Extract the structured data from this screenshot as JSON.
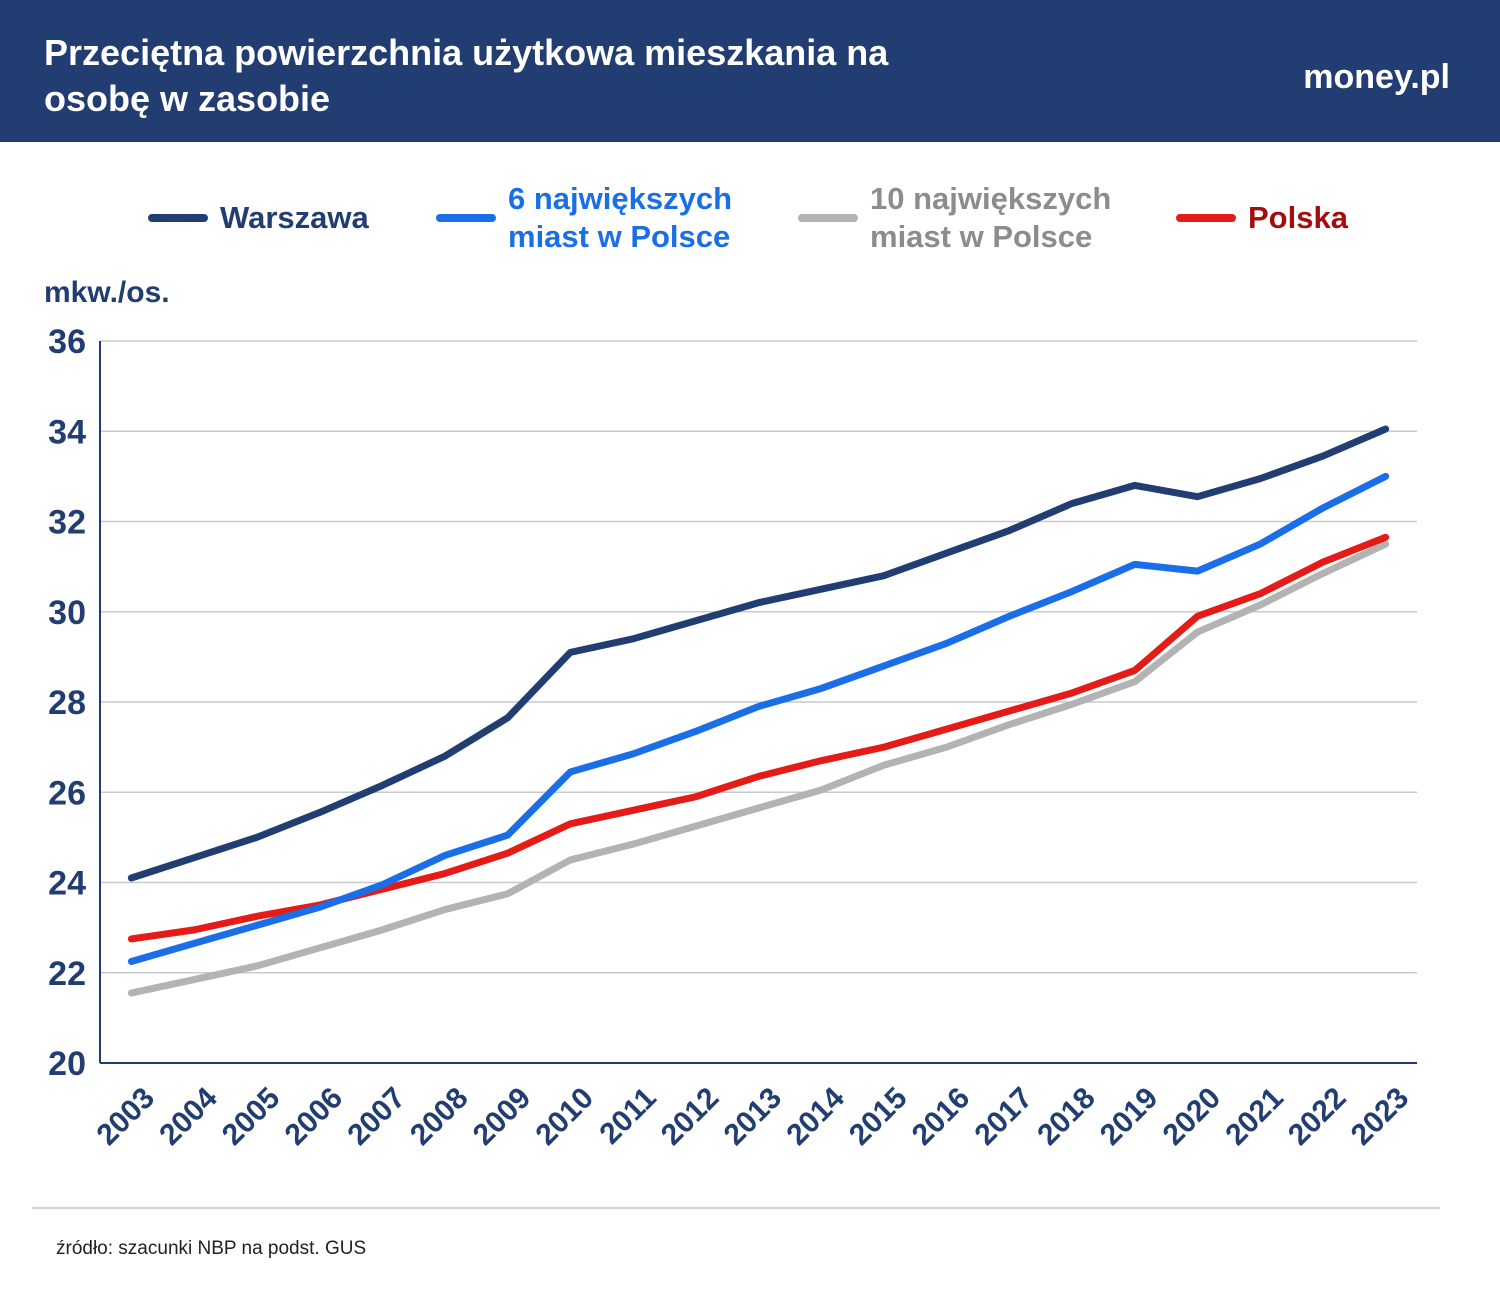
{
  "header": {
    "title": "Przeciętna powierzchnia użytkowa mieszkania na osobę w zasobie",
    "logo": "money.pl"
  },
  "chart_data": {
    "type": "line",
    "y_label": "mkw./os.",
    "categories": [
      "2003",
      "2004",
      "2005",
      "2006",
      "2007",
      "2008",
      "2009",
      "2010",
      "2011",
      "2012",
      "2013",
      "2014",
      "2015",
      "2016",
      "2017",
      "2018",
      "2019",
      "2020",
      "2021",
      "2022",
      "2023"
    ],
    "series": [
      {
        "name": "Warszawa",
        "color": "#223d72",
        "text_color": "#223d72",
        "values": [
          24.1,
          24.55,
          25.0,
          25.55,
          26.15,
          26.8,
          27.65,
          29.1,
          29.4,
          29.8,
          30.2,
          30.5,
          30.8,
          31.3,
          31.8,
          32.4,
          32.8,
          32.55,
          32.95,
          33.45,
          34.05
        ]
      },
      {
        "name": "6 największych miast w Polsce",
        "color": "#1a6fe8",
        "text_color": "#1a6fe8",
        "values": [
          22.25,
          22.65,
          23.05,
          23.45,
          23.95,
          24.6,
          25.05,
          26.45,
          26.85,
          27.35,
          27.9,
          28.3,
          28.8,
          29.3,
          29.9,
          30.45,
          31.05,
          30.9,
          31.5,
          32.3,
          33.0
        ]
      },
      {
        "name": "10 największych miast w Polsce",
        "color": "#b3b3b3",
        "text_color": "#8c8c8c",
        "values": [
          21.55,
          21.85,
          22.15,
          22.55,
          22.95,
          23.4,
          23.75,
          24.5,
          24.85,
          25.25,
          25.65,
          26.05,
          26.6,
          27.0,
          27.5,
          27.95,
          28.45,
          29.55,
          30.15,
          30.85,
          31.5
        ]
      },
      {
        "name": "Polska",
        "color": "#e41b17",
        "text_color": "#a30d0d",
        "values": [
          22.75,
          22.95,
          23.25,
          23.5,
          23.85,
          24.2,
          24.65,
          25.3,
          25.6,
          25.9,
          26.35,
          26.7,
          27.0,
          27.4,
          27.8,
          28.2,
          28.7,
          29.9,
          30.4,
          31.1,
          31.65
        ]
      }
    ],
    "ylim": [
      20,
      36
    ],
    "yticks": [
      20,
      22,
      24,
      26,
      28,
      30,
      32,
      34,
      36
    ],
    "grid": true
  },
  "footer": {
    "source": "źródło: szacunki NBP na podst. GUS"
  }
}
